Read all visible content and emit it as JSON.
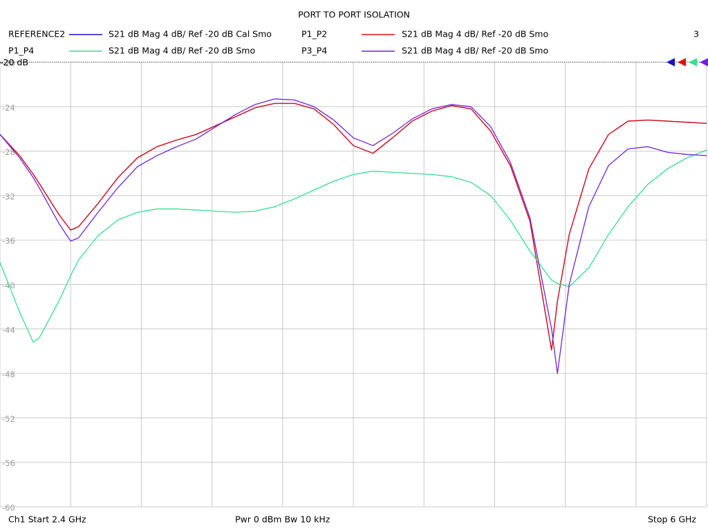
{
  "chart_data": {
    "type": "line",
    "title": "PORT TO PORT ISOLATION",
    "channel_number": "3",
    "ref_label": "-20 dB",
    "footer_left": "Ch1  Start  2.4 GHz",
    "footer_center": "Pwr  0 dBm  Bw  10 kHz",
    "footer_right": "Stop  6 GHz",
    "x": [
      2.4,
      2.5,
      2.57,
      2.6,
      2.7,
      2.76,
      2.8,
      2.9,
      3.0,
      3.1,
      3.2,
      3.3,
      3.4,
      3.5,
      3.6,
      3.7,
      3.8,
      3.9,
      4.0,
      4.1,
      4.2,
      4.3,
      4.4,
      4.5,
      4.6,
      4.7,
      4.8,
      4.9,
      5.0,
      5.1,
      5.21,
      5.24,
      5.3,
      5.4,
      5.5,
      5.6,
      5.7,
      5.8,
      5.9,
      6.0
    ],
    "xlim": [
      2.4,
      6
    ],
    "xticks": [
      2.4,
      2.76,
      3.12,
      3.48,
      3.84,
      4.2,
      4.56,
      4.92,
      5.28,
      5.64,
      6
    ],
    "ylim": [
      -60,
      -20
    ],
    "yticks": [
      -20,
      -24,
      -28,
      -32,
      -36,
      -40,
      -44,
      -48,
      -52,
      -56,
      -60
    ],
    "grid": true,
    "series": [
      {
        "name": "REFERENCE2",
        "description": "S21  dB Mag  4 dB/ Ref -20 dB  Cal Smo",
        "color": "#1010c8",
        "values": [
          -26.5,
          -28.4,
          -30.1,
          -30.9,
          -33.7,
          -35.1,
          -34.8,
          -32.7,
          -30.4,
          -28.6,
          -27.6,
          -27.0,
          -26.5,
          -25.7,
          -24.9,
          -24.1,
          -23.7,
          -23.7,
          -24.2,
          -25.6,
          -27.5,
          -28.2,
          -26.8,
          -25.3,
          -24.4,
          -23.9,
          -24.2,
          -26.2,
          -29.3,
          -34.3,
          -45.9,
          -41.5,
          -35.5,
          -29.6,
          -26.5,
          -25.3,
          -25.2,
          -25.3,
          -25.4,
          -25.5
        ]
      },
      {
        "name": "P1_P2",
        "description": "S21  dB Mag  4 dB/ Ref -20 dB  Smo",
        "color": "#e01010",
        "values": [
          -26.5,
          -28.4,
          -30.1,
          -30.9,
          -33.7,
          -35.1,
          -34.8,
          -32.7,
          -30.4,
          -28.6,
          -27.6,
          -27.0,
          -26.5,
          -25.7,
          -24.9,
          -24.1,
          -23.7,
          -23.7,
          -24.2,
          -25.6,
          -27.5,
          -28.2,
          -26.8,
          -25.3,
          -24.4,
          -23.9,
          -24.2,
          -26.2,
          -29.3,
          -34.3,
          -45.9,
          -41.5,
          -35.5,
          -29.6,
          -26.5,
          -25.3,
          -25.2,
          -25.3,
          -25.4,
          -25.5
        ]
      },
      {
        "name": "P1_P4",
        "description": "S21  dB Mag  4 dB/ Ref -20 dB  Smo",
        "color": "#30e090",
        "values": [
          -38.0,
          -42.5,
          -45.2,
          -44.8,
          -41.5,
          -39.2,
          -37.8,
          -35.6,
          -34.2,
          -33.5,
          -33.2,
          -33.2,
          -33.3,
          -33.4,
          -33.5,
          -33.4,
          -33.0,
          -32.3,
          -31.5,
          -30.7,
          -30.1,
          -29.8,
          -29.9,
          -30.0,
          -30.1,
          -30.3,
          -30.8,
          -32.0,
          -34.2,
          -37.0,
          -39.6,
          -39.9,
          -40.2,
          -38.5,
          -35.5,
          -33.0,
          -31.0,
          -29.6,
          -28.6,
          -27.9
        ]
      },
      {
        "name": "P3_P4",
        "description": "S21  dB Mag  4 dB/ Ref -20 dB  Smo",
        "color": "#7020e0",
        "values": [
          -26.5,
          -28.6,
          -30.4,
          -31.3,
          -34.5,
          -36.1,
          -35.8,
          -33.5,
          -31.3,
          -29.4,
          -28.4,
          -27.6,
          -26.9,
          -25.8,
          -24.7,
          -23.8,
          -23.3,
          -23.4,
          -24.0,
          -25.2,
          -26.8,
          -27.5,
          -26.4,
          -25.1,
          -24.2,
          -23.8,
          -24.0,
          -25.8,
          -29.0,
          -34.0,
          -44.0,
          -48.0,
          -40.0,
          -33.0,
          -29.3,
          -27.8,
          -27.6,
          -28.1,
          -28.3,
          -28.4
        ]
      }
    ]
  }
}
